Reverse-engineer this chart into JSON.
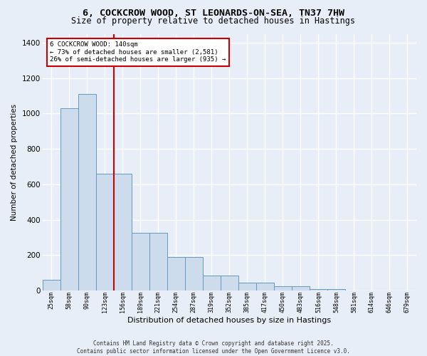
{
  "title": "6, COCKCROW WOOD, ST LEONARDS-ON-SEA, TN37 7HW",
  "subtitle": "Size of property relative to detached houses in Hastings",
  "xlabel": "Distribution of detached houses by size in Hastings",
  "ylabel": "Number of detached properties",
  "categories": [
    "25sqm",
    "58sqm",
    "90sqm",
    "123sqm",
    "156sqm",
    "189sqm",
    "221sqm",
    "254sqm",
    "287sqm",
    "319sqm",
    "352sqm",
    "385sqm",
    "417sqm",
    "450sqm",
    "483sqm",
    "516sqm",
    "548sqm",
    "581sqm",
    "614sqm",
    "646sqm",
    "679sqm"
  ],
  "values": [
    60,
    1030,
    1110,
    660,
    660,
    325,
    325,
    190,
    190,
    85,
    85,
    45,
    45,
    25,
    25,
    10,
    10,
    0,
    0,
    0,
    0
  ],
  "bar_color": "#ccdcec",
  "bar_edge_color": "#6699bb",
  "bg_color": "#e8eef8",
  "grid_color": "#ffffff",
  "vline_color": "#cc0000",
  "vline_pos": 3.5,
  "annotation_text": "6 COCKCROW WOOD: 140sqm\n← 73% of detached houses are smaller (2,581)\n26% of semi-detached houses are larger (935) →",
  "annotation_box_color": "#ffffff",
  "annotation_box_edge_color": "#cc0000",
  "footer_text": "Contains HM Land Registry data © Crown copyright and database right 2025.\nContains public sector information licensed under the Open Government Licence v3.0.",
  "ylim": [
    0,
    1450
  ],
  "yticks": [
    0,
    200,
    400,
    600,
    800,
    1000,
    1200,
    1400
  ]
}
